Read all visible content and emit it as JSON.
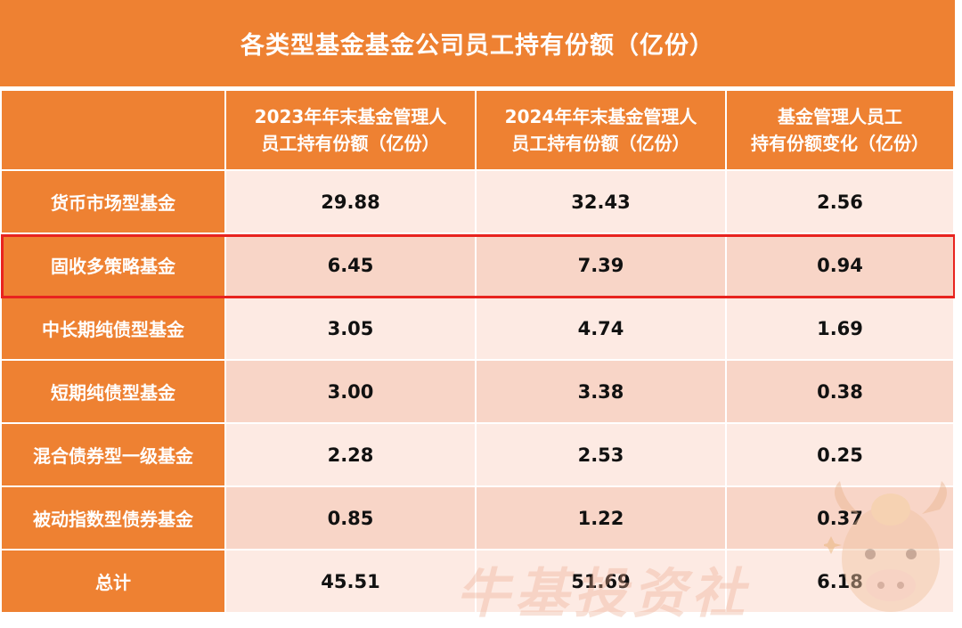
{
  "title": "各类型基金基金公司员工持有份额（亿份）",
  "columns": {
    "label": "",
    "col2023": [
      "2023年年末基金管理人",
      "员工持有份额（亿份）"
    ],
    "col2024": [
      "2024年年末基金管理人",
      "员工持有份额（亿份）"
    ],
    "change": [
      "基金管理人员工",
      "持有份额变化（亿份）"
    ]
  },
  "rows": [
    {
      "name": "货币市场型基金",
      "v2023": "29.88",
      "v2024": "32.43",
      "change": "2.56"
    },
    {
      "name": "固收多策略基金",
      "v2023": "6.45",
      "v2024": "7.39",
      "change": "0.94"
    },
    {
      "name": "中长期纯债型基金",
      "v2023": "3.05",
      "v2024": "4.74",
      "change": "1.69"
    },
    {
      "name": "短期纯债型基金",
      "v2023": "3.00",
      "v2024": "3.38",
      "change": "0.38"
    },
    {
      "name": "混合债券型一级基金",
      "v2023": "2.28",
      "v2024": "2.53",
      "change": "0.25"
    },
    {
      "name": "被动指数型债券基金",
      "v2023": "0.85",
      "v2024": "1.22",
      "change": "0.37"
    },
    {
      "name": "总计",
      "v2023": "45.51",
      "v2024": "51.69",
      "change": "6.18"
    }
  ],
  "highlighted_row": "固收多策略基金",
  "watermark": "牛基投资社",
  "colors": {
    "header_orange": "#ee8132",
    "row_light": "#fdeae3",
    "row_dark": "#f8d5c7",
    "highlight_red": "#e8231f"
  }
}
